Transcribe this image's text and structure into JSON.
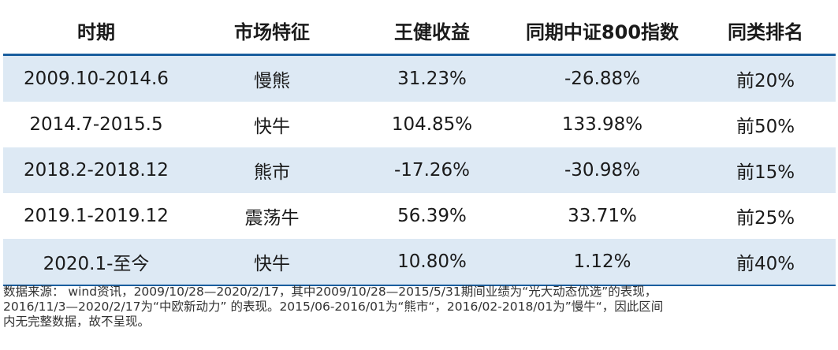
{
  "headers": {
    "period": "时期",
    "market": "市场特征",
    "return": "王健收益",
    "index": "同期中证800指数",
    "rank": "同类排名"
  },
  "rows": [
    {
      "period": "2009.10-2014.6",
      "market": "慢熊",
      "return": "31.23%",
      "index": "-26.88%",
      "rank": "前20%"
    },
    {
      "period": "2014.7-2015.5",
      "market": "快牛",
      "return": "104.85%",
      "index": "133.98%",
      "rank": "前50%"
    },
    {
      "period": "2018.2-2018.12",
      "market": "熊市",
      "return": "-17.26%",
      "index": "-30.98%",
      "rank": "前15%"
    },
    {
      "period": "2019.1-2019.12",
      "market": "震荡牛",
      "return": "56.39%",
      "index": "33.71%",
      "rank": "前25%"
    },
    {
      "period": "2020.1-至今",
      "market": "快牛",
      "return": "10.80%",
      "index": "1.12%",
      "rank": "前40%"
    }
  ],
  "note": {
    "line1": "数据来源： wind资讯，2009/10/28—2020/2/17，其中2009/10/28—2015/5/31期间业绩为“光大动态优选”的表现，",
    "line2": "2016/11/3—2020/2/17为“中欧新动力” 的表现。2015/06-2016/01为“熊市“，2016/02-2018/01为”慢牛“，因此区间",
    "line3": "内无完整数据，故不呈现。"
  },
  "colors": {
    "accent_line": "#1a5e9e",
    "row_stripe": "#dde9f4"
  }
}
